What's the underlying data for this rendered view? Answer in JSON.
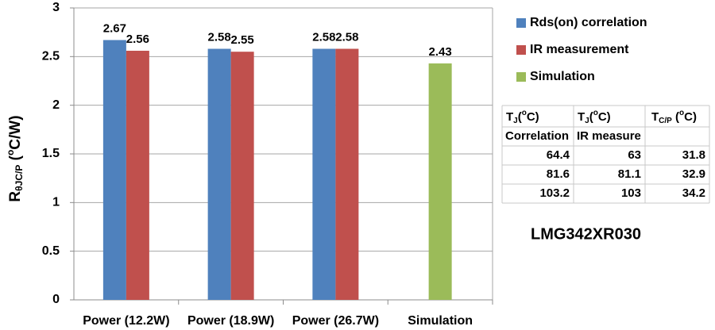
{
  "chart_data": {
    "type": "bar",
    "ylabel": {
      "base": "R",
      "sub": "θJC/P",
      "open": " (",
      "sup": "o",
      "close": "C/W)"
    },
    "categories": [
      "Power (12.2W)",
      "Power (18.9W)",
      "Power (26.7W)",
      "Simulation"
    ],
    "series": [
      {
        "name": "Rds(on) correlation",
        "color": "#4f81bd",
        "values": [
          2.67,
          2.58,
          2.58,
          null
        ]
      },
      {
        "name": "IR measurement",
        "color": "#c0504d",
        "values": [
          2.56,
          2.55,
          2.58,
          null
        ]
      },
      {
        "name": "Simulation",
        "color": "#9bbb59",
        "values": [
          null,
          null,
          null,
          2.43
        ]
      }
    ],
    "ylim": [
      0,
      3
    ],
    "yticks": [
      0,
      0.5,
      1,
      1.5,
      2,
      2.5,
      3
    ],
    "grid": true,
    "legend": "right"
  },
  "table": {
    "header": [
      {
        "base": "T",
        "sub": "J",
        "open": "(",
        "sup": "o",
        "close": "C)"
      },
      {
        "base": "T",
        "sub": "J",
        "open": "(",
        "sup": "o",
        "close": "C)"
      },
      {
        "base": "T",
        "sub": "C/P",
        "open": " (",
        "sup": "o",
        "close": "C)"
      }
    ],
    "subheader": [
      "Correlation",
      "IR measure"
    ],
    "rows": [
      [
        64.4,
        63,
        31.8
      ],
      [
        81.6,
        81.1,
        32.9
      ],
      [
        103.2,
        103,
        34.2
      ]
    ]
  },
  "part_label": "LMG342XR030"
}
